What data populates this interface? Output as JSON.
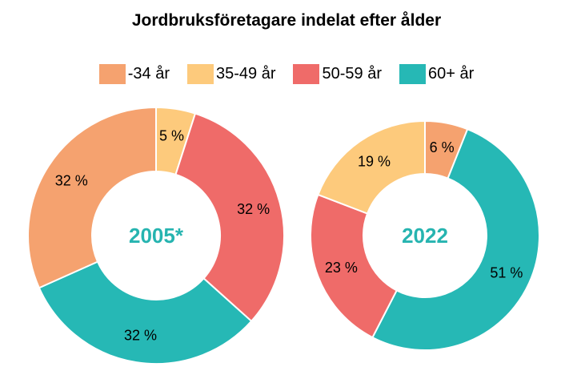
{
  "chart_data": {
    "type": "donut",
    "title": "Jordbruksföretagare indelat efter ålder",
    "legend_position": "top",
    "series_names": [
      "-34 år",
      "35-49 år",
      "50-59 år",
      "60+ år"
    ],
    "colors": [
      "#f5a26f",
      "#fdca7c",
      "#ef6b69",
      "#26b8b5"
    ],
    "charts": [
      {
        "center_label": "2005*",
        "slices": [
          {
            "name": "35-49 år",
            "value": 5,
            "label": "5 %"
          },
          {
            "name": "50-59 år",
            "value": 32,
            "label": "32 %"
          },
          {
            "name": "60+ år",
            "value": 32,
            "label": "32 %"
          },
          {
            "name": "-34 år",
            "value": 32,
            "label": "32 %"
          }
        ]
      },
      {
        "center_label": "2022",
        "slices": [
          {
            "name": "-34 år",
            "value": 6,
            "label": "6 %"
          },
          {
            "name": "60+ år",
            "value": 51,
            "label": "51 %"
          },
          {
            "name": "50-59 år",
            "value": 23,
            "label": "23 %"
          },
          {
            "name": "35-49 år",
            "value": 19,
            "label": "19 %"
          }
        ]
      }
    ]
  }
}
